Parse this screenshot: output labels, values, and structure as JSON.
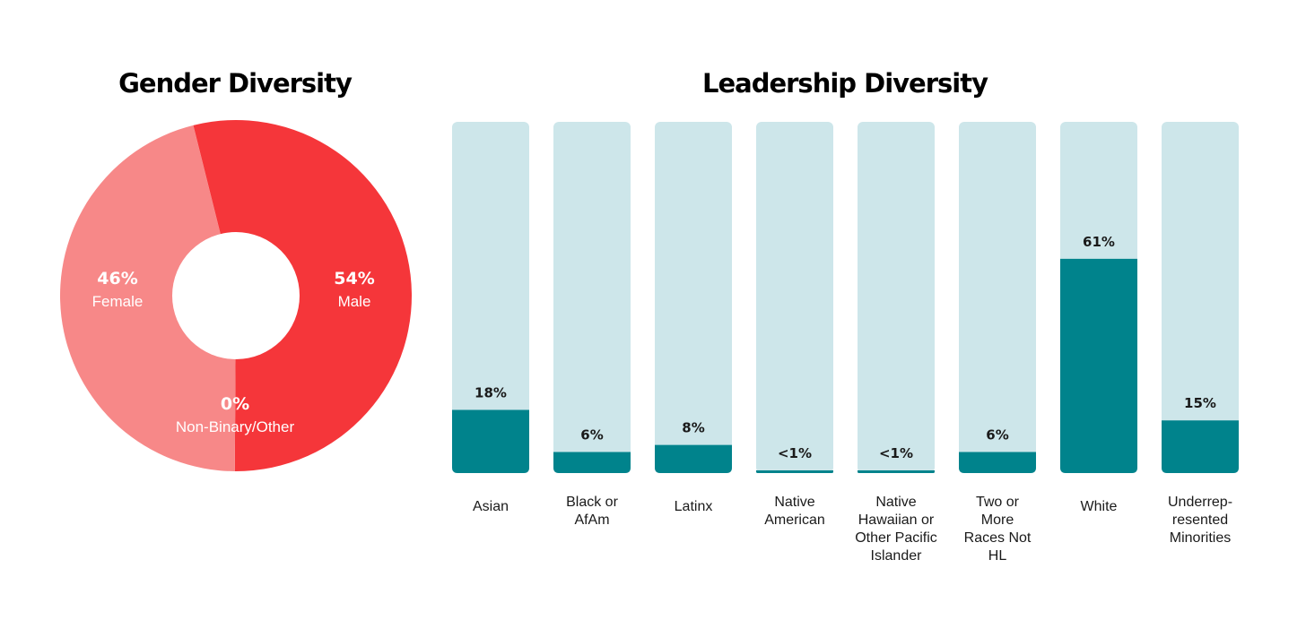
{
  "charts": {
    "gender": {
      "title": "Gender Diversity",
      "chart_data": {
        "type": "pie",
        "title": "Gender Diversity",
        "slices": [
          {
            "label": "Male",
            "value": 54,
            "value_label": "54%",
            "color": "#f5363a"
          },
          {
            "label": "Non-Binary/Other",
            "value": 0,
            "value_label": "0%",
            "color": "#f5363a"
          },
          {
            "label": "Female",
            "value": 46,
            "value_label": "46%",
            "color": "#f78888"
          }
        ]
      }
    },
    "leadership": {
      "title": "Leadership Diversity",
      "chart_data": {
        "type": "bar",
        "title": "Leadership Diversity",
        "ylim": [
          0,
          100
        ],
        "categories": [
          "Asian",
          "Black or AfAm",
          "Latinx",
          "Native American",
          "Native Hawaiian or Other Pacific Islander",
          "Two or More Races Not HL",
          "White",
          "Underrep-resented Minorities"
        ],
        "category_lines": [
          [
            "Asian"
          ],
          [
            "Black or",
            "AfAm"
          ],
          [
            "Latinx"
          ],
          [
            "Native",
            "American"
          ],
          [
            "Native",
            "Hawaiian or",
            "Other Pacific",
            "Islander"
          ],
          [
            "Two or",
            "More",
            "Races Not",
            "HL"
          ],
          [
            "White"
          ],
          [
            "Underrep-",
            "resented",
            "Minorities"
          ]
        ],
        "values": [
          18,
          6,
          8,
          0.5,
          0.5,
          6,
          61,
          15
        ],
        "value_labels": [
          "18%",
          "6%",
          "8%",
          "<1%",
          "<1%",
          "6%",
          "61%",
          "15%"
        ],
        "colors": {
          "track": "#cde6ea",
          "fill": "#00838c"
        }
      }
    }
  }
}
